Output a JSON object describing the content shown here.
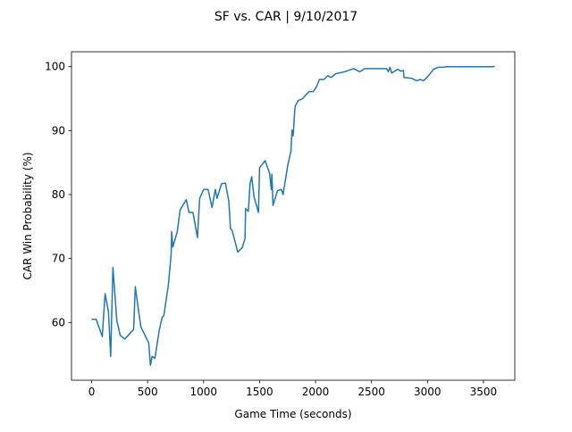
{
  "chart_data": {
    "type": "line",
    "title": "SF vs. CAR | 9/10/2017",
    "x_label": "Game Time (seconds)",
    "y_label": "CAR Win Probability (%)",
    "xlim": [
      -180,
      3780
    ],
    "ylim": [
      50.97,
      102.33
    ],
    "xticks": [
      0,
      500,
      1000,
      1500,
      2000,
      2500,
      3000,
      3500
    ],
    "yticks": [
      60,
      70,
      80,
      90,
      100
    ],
    "series": [
      {
        "name": "CAR",
        "color": "#1f77b4",
        "x": [
          0,
          40,
          95,
          120,
          150,
          170,
          190,
          225,
          255,
          295,
          375,
          390,
          420,
          440,
          510,
          525,
          540,
          565,
          605,
          630,
          645,
          685,
          710,
          715,
          725,
          765,
          790,
          845,
          870,
          905,
          945,
          965,
          1000,
          1040,
          1075,
          1105,
          1120,
          1160,
          1195,
          1225,
          1240,
          1255,
          1305,
          1345,
          1370,
          1375,
          1400,
          1415,
          1430,
          1450,
          1490,
          1500,
          1550,
          1590,
          1605,
          1610,
          1620,
          1660,
          1695,
          1710,
          1750,
          1775,
          1780,
          1790,
          1800,
          1815,
          1820,
          1845,
          1885,
          1940,
          1980,
          2010,
          2035,
          2075,
          2110,
          2140,
          2180,
          2260,
          2340,
          2395,
          2440,
          2580,
          2635,
          2650,
          2665,
          2680,
          2735,
          2760,
          2785,
          2790,
          2855,
          2905,
          2935,
          2965,
          3005,
          3055,
          3095,
          3135,
          3175,
          3590,
          3600
        ],
        "values": [
          60.5,
          60.5,
          57.8,
          64.5,
          61.7,
          54.7,
          68.6,
          60.3,
          58,
          57.4,
          58.9,
          65.6,
          61.7,
          59.3,
          56.8,
          53.3,
          54.7,
          54.4,
          58.9,
          60.8,
          61.1,
          65.8,
          70.6,
          74.2,
          71.8,
          74.2,
          77.6,
          79.2,
          77.2,
          77.2,
          73.3,
          79.4,
          80.8,
          80.8,
          78,
          80.8,
          79.4,
          81.7,
          81.8,
          79,
          74.7,
          74.4,
          71,
          71.7,
          73.1,
          77.8,
          77.4,
          81.7,
          82.8,
          79.7,
          77.2,
          84.2,
          85.3,
          83.3,
          80.8,
          83.2,
          78.3,
          80.6,
          80.8,
          80,
          84.4,
          86.4,
          86.7,
          90.1,
          89.2,
          93.3,
          93.9,
          94.7,
          95,
          96.1,
          96.1,
          96.9,
          98,
          98,
          98.6,
          98.3,
          98.9,
          99.2,
          99.7,
          99.2,
          99.7,
          99.7,
          99.7,
          99.2,
          99.9,
          99,
          99.6,
          99.3,
          99.4,
          98.3,
          98.2,
          97.8,
          98,
          97.8,
          98.5,
          99.6,
          99.9,
          99.9,
          100,
          100,
          100.1
        ]
      }
    ]
  }
}
